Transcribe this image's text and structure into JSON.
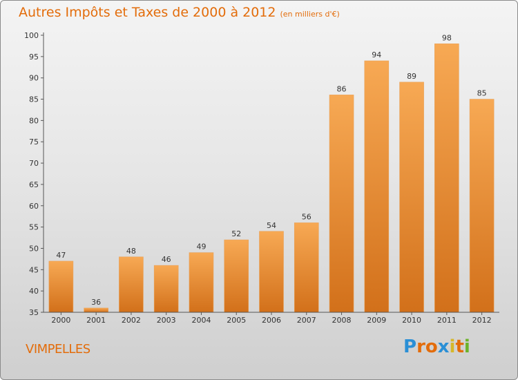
{
  "title": "Autres Impôts et Taxes de 2000 à 2012",
  "subtitle": "(en milliers d'€)",
  "commune": "VIMPELLES",
  "logo": {
    "letters": [
      "P",
      "r",
      "o",
      "x",
      "i",
      "t",
      "i"
    ],
    "colors": [
      "#2a8fd6",
      "#e36c0a",
      "#e36c0a",
      "#2a8fd6",
      "#d6b72a",
      "#e36c0a",
      "#6cb32a"
    ]
  },
  "colors": {
    "bar": "#f0922e",
    "bar_light": "#f7a954",
    "bar_dark": "#d2701a",
    "accent": "#e36c0a"
  },
  "chart_data": {
    "type": "bar",
    "categories": [
      "2000",
      "2001",
      "2002",
      "2003",
      "2004",
      "2005",
      "2006",
      "2007",
      "2008",
      "2009",
      "2010",
      "2011",
      "2012"
    ],
    "values": [
      47,
      36,
      48,
      46,
      49,
      52,
      54,
      56,
      86,
      94,
      89,
      98,
      85
    ],
    "data_labels": [
      "47",
      "36",
      "48",
      "46",
      "49",
      "52",
      "54",
      "56",
      "86",
      "94",
      "89",
      "98",
      "85"
    ],
    "title": "Autres Impôts et Taxes de 2000 à 2012",
    "ylim": [
      35,
      100
    ],
    "yticks": [
      35,
      40,
      45,
      50,
      55,
      60,
      65,
      70,
      75,
      80,
      85,
      90,
      95,
      100
    ],
    "grid": false
  }
}
